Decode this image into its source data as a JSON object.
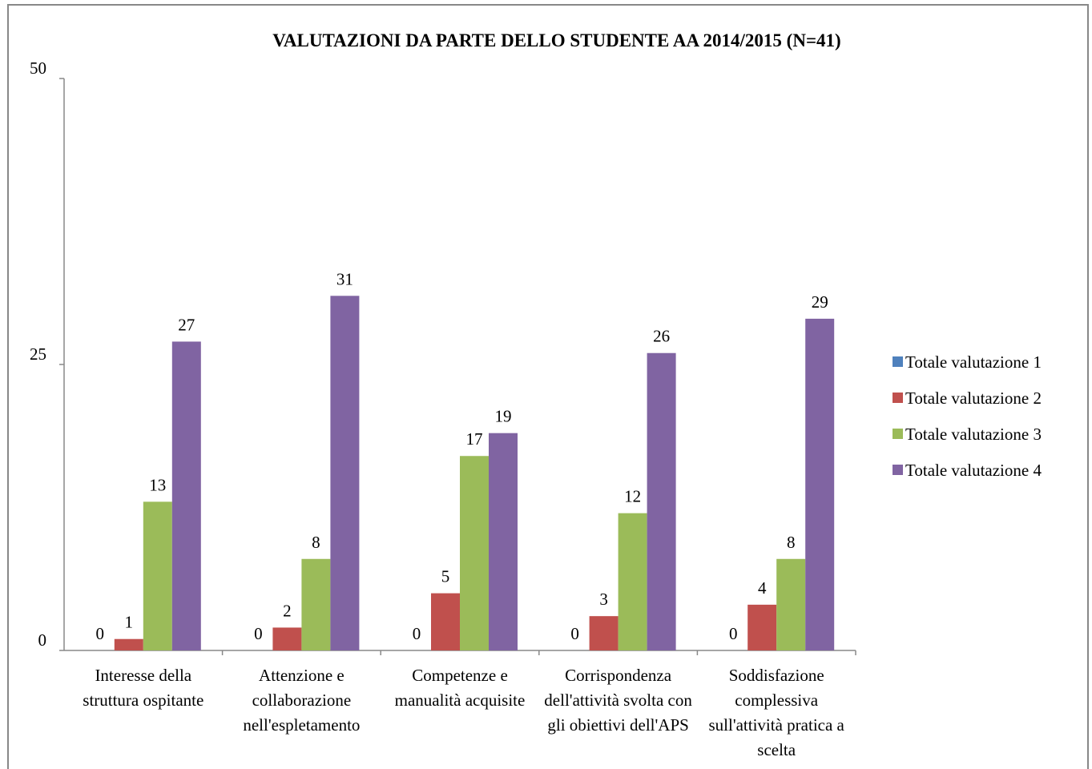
{
  "chart_data": {
    "type": "bar",
    "title": "VALUTAZIONI DA PARTE DELLO STUDENTE AA 2014/2015 (N=41)",
    "categories": [
      "Interesse della struttura ospitante",
      "Attenzione e collaborazione nell'espletamento",
      "Competenze e manualità acquisite",
      "Corrispondenza dell'attività svolta con gli obiettivi dell'APS",
      "Soddisfazione complessiva sull'attività pratica a scelta"
    ],
    "series": [
      {
        "name": "Totale valutazione 1",
        "color": "#4f81bd",
        "values": [
          0,
          0,
          0,
          0,
          0
        ]
      },
      {
        "name": "Totale valutazione 2",
        "color": "#c0504d",
        "values": [
          1,
          2,
          5,
          3,
          4
        ]
      },
      {
        "name": "Totale valutazione 3",
        "color": "#9bbb59",
        "values": [
          13,
          8,
          17,
          12,
          8
        ]
      },
      {
        "name": "Totale valutazione 4",
        "color": "#8064a2",
        "values": [
          27,
          31,
          19,
          26,
          29
        ]
      }
    ],
    "ylim": [
      0,
      50
    ],
    "yticks": [
      0,
      25,
      50
    ],
    "grid": false,
    "legend": "right",
    "data_labels": true
  }
}
